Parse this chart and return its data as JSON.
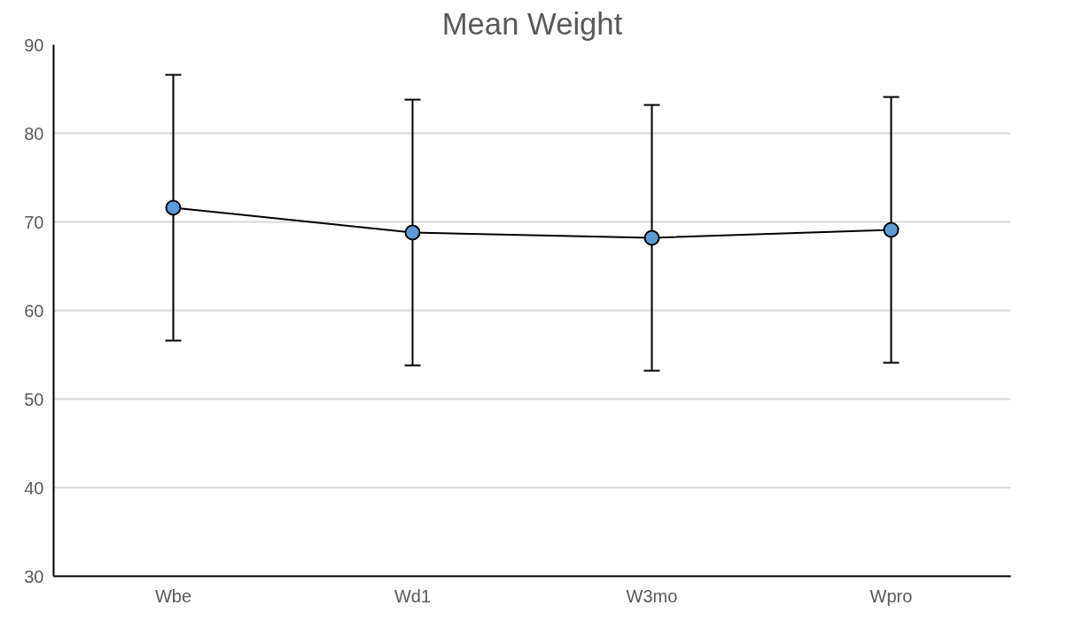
{
  "chart_data": {
    "type": "line",
    "title": "Mean Weight",
    "categories": [
      "Wbe",
      "Wd1",
      "W3mo",
      "Wpro"
    ],
    "series": [
      {
        "color": "#5b9bd5",
        "values": [
          71.6,
          68.8,
          68.2,
          69.1
        ],
        "errors": [
          15,
          15,
          15,
          15
        ]
      }
    ],
    "ylim": [
      30,
      90
    ],
    "yticks": [
      30,
      40,
      50,
      60,
      70,
      80,
      90
    ],
    "grid": "y",
    "marker": "circle",
    "line_style": "solid"
  }
}
